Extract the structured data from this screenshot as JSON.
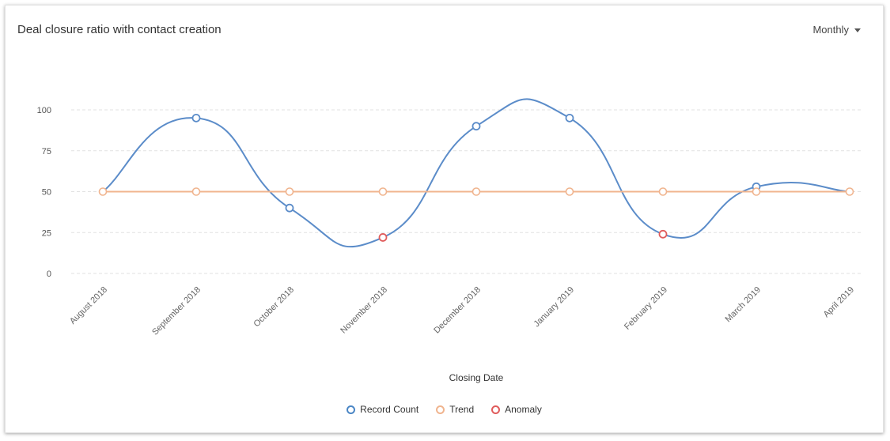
{
  "header": {
    "title": "Deal closure ratio with contact creation",
    "period_label": "Monthly"
  },
  "colors": {
    "record_count": "#5b8cc9",
    "trend": "#f0b48e",
    "anomaly": "#e05c5c",
    "grid": "#e2e2e2"
  },
  "chart_data": {
    "type": "line",
    "title": "Deal closure ratio with contact creation",
    "xlabel": "Closing Date",
    "ylabel": "",
    "ylim": [
      0,
      100
    ],
    "yticks": [
      0,
      25,
      50,
      75,
      100
    ],
    "grid": true,
    "legend_position": "bottom-center",
    "categories": [
      "August 2018",
      "September 2018",
      "October 2018",
      "November 2018",
      "December 2018",
      "January 2019",
      "February 2019",
      "March 2019",
      "April 2019"
    ],
    "series": [
      {
        "name": "Record Count",
        "values": [
          50,
          95,
          40,
          22,
          90,
          95,
          24,
          53,
          50
        ],
        "anomaly_indices": [
          3,
          6
        ]
      },
      {
        "name": "Trend",
        "values": [
          50,
          50,
          50,
          50,
          50,
          50,
          50,
          50,
          50
        ]
      }
    ]
  },
  "legend": {
    "items": [
      {
        "label": "Record Count",
        "color": "#4a86c5"
      },
      {
        "label": "Trend",
        "color": "#f0b48e"
      },
      {
        "label": "Anomaly",
        "color": "#e05c5c"
      }
    ]
  }
}
